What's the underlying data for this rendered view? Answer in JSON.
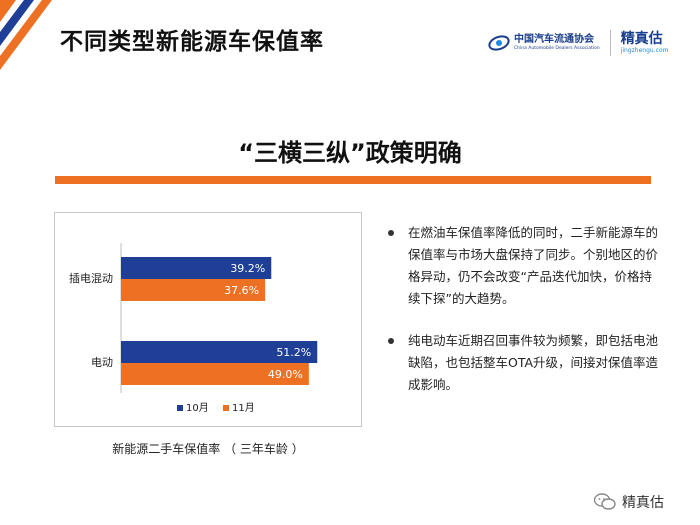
{
  "header": {
    "title": "不同类型新能源车保值率",
    "logo_cada_cn": "中国汽车流通协会",
    "logo_cada_en": "China Automobile Dealers Association",
    "logo_jzg_cn": "精真估",
    "logo_jzg_en": "jingzhengu.com"
  },
  "subtitle": "“三横三纵”政策明确",
  "chart_caption": "新能源二手车保值率 （ 三年车龄 ）",
  "chart_data": {
    "type": "bar",
    "orientation": "horizontal",
    "categories": [
      "插电混动",
      "电动"
    ],
    "series": [
      {
        "name": "10月",
        "values": [
          39.2,
          51.2
        ],
        "labels": [
          "39.2%",
          "51.2%"
        ],
        "color": "#1f3e96"
      },
      {
        "name": "11月",
        "values": [
          37.6,
          49.0
        ],
        "labels": [
          "37.6%",
          "49.0%"
        ],
        "color": "#ee7023"
      }
    ],
    "xlim": [
      0,
      60
    ],
    "legend_position": "bottom",
    "grid": false
  },
  "bullets": [
    "在燃油车保值率降低的同时，二手新能源车的保值率与市场大盘保持了同步。个别地区的价格异动，仍不会改变“产品迭代加快，价格持续下探”的大趋势。",
    "纯电动车近期召回事件较为频繁，即包括电池缺陷，也包括整车OTA升级，间接对保值率造成影响。"
  ],
  "footer": {
    "wechat_label": "精真估"
  },
  "colors": {
    "accent_orange": "#ee7023",
    "brand_blue": "#1f3e96"
  }
}
